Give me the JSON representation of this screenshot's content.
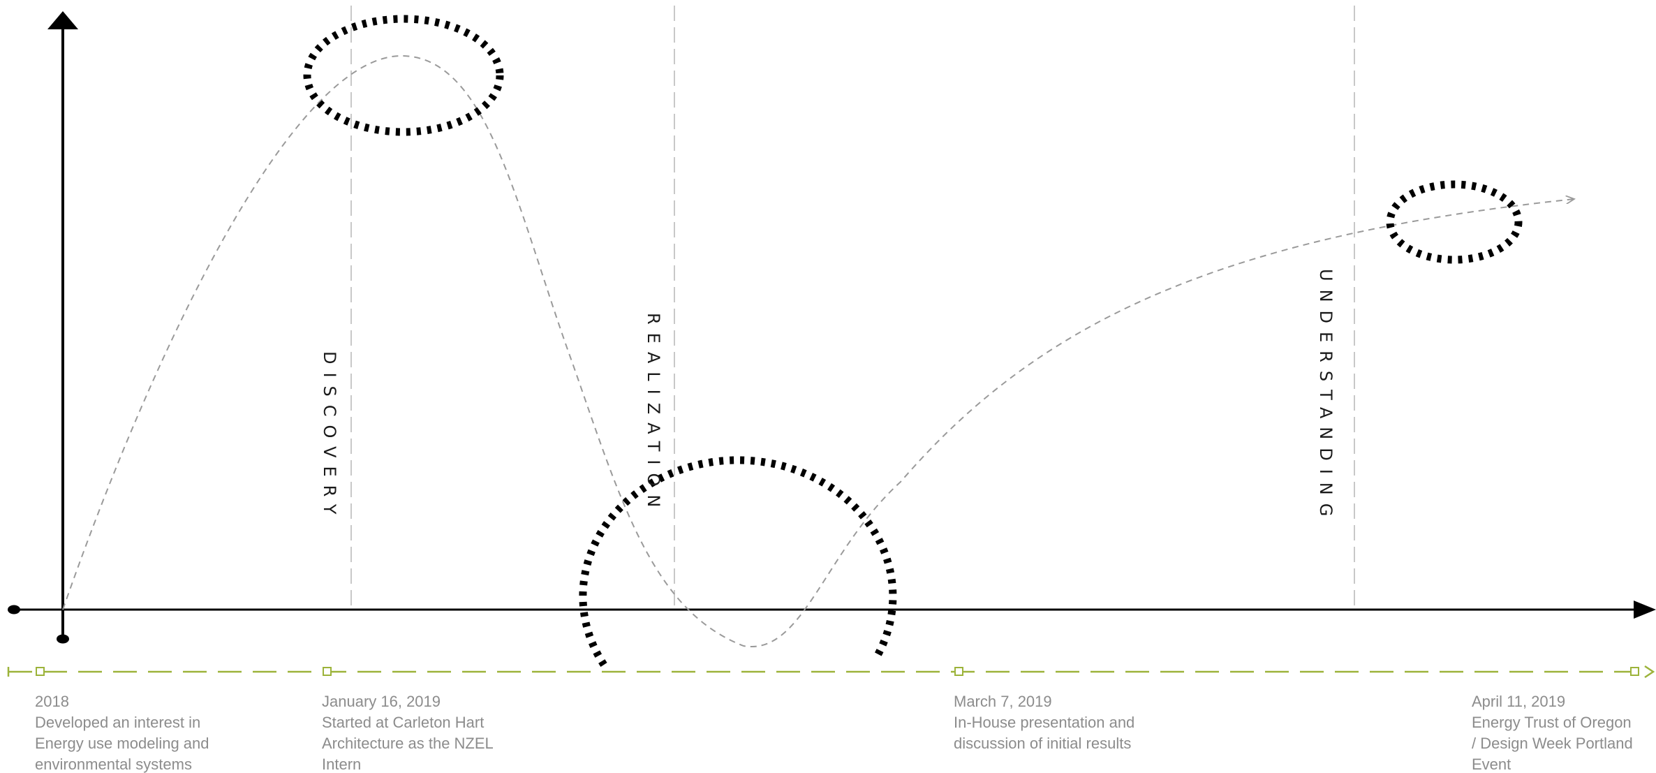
{
  "phases": {
    "discovery": "DISCOVERY",
    "realization": "REALIZATION",
    "understanding": "UNDERSTANDING"
  },
  "milestones": [
    {
      "date": "2018",
      "lines": [
        "Developed an interest in",
        "Energy use modeling and",
        "environmental systems"
      ]
    },
    {
      "date": "January 16, 2019",
      "lines": [
        "Started at Carleton Hart",
        "Architecture as the NZEL",
        "Intern"
      ]
    },
    {
      "date": "March 7, 2019",
      "lines": [
        "In-House presentation and",
        "discussion of initial results"
      ]
    },
    {
      "date": "April 11, 2019",
      "lines": [
        "Energy Trust of Oregon",
        "/ Design Week Portland",
        "Event"
      ]
    }
  ],
  "colors": {
    "axis": "#000000",
    "guide": "#c8c8c8",
    "curve": "#9a9a9a",
    "timeline": "#9cb33a",
    "text": "#8c8c8c",
    "dash_ring": "#000000"
  }
}
